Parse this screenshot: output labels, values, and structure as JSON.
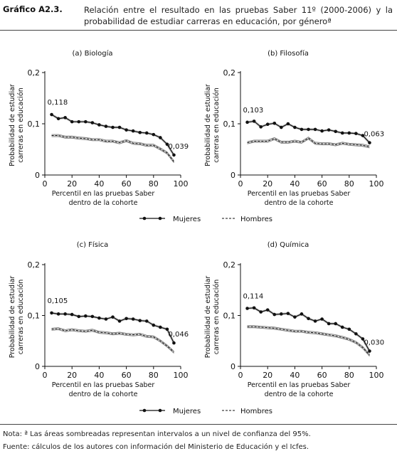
{
  "header": {
    "label": "Gráfico A2.3.",
    "title": "Relación entre el resultado en las pruebas Saber 11º (2000-2006) y la probabilidad de estudiar carreras en educación, por géneroª"
  },
  "legend": {
    "women": "Mujeres",
    "men": "Hombres"
  },
  "footer": {
    "note": "Nota: ª Las áreas sombreadas representan intervalos a un nivel de confianza del 95%.",
    "source": "Fuente: cálculos de los autores con información del Ministerio de Educación y el Icfes."
  },
  "chart_data": [
    {
      "type": "line",
      "title": "(a) Biología",
      "xlabel": "Percentil en las pruebas Saber dentro de la cohorte",
      "ylabel": "Probabilidad de estudiar carreras en educación",
      "xlim": [
        0,
        100
      ],
      "ylim": [
        0,
        0.2
      ],
      "xticks": [
        "0",
        "20",
        "40",
        "60",
        "80",
        "100"
      ],
      "yticks": [
        "0",
        "0,1",
        "0,2"
      ],
      "annotations": [
        "0,118",
        "0,039"
      ],
      "x": [
        5,
        10,
        15,
        20,
        25,
        30,
        35,
        40,
        45,
        50,
        55,
        60,
        65,
        70,
        75,
        80,
        85,
        90,
        95
      ],
      "series": [
        {
          "name": "Mujeres",
          "values": [
            0.118,
            0.11,
            0.112,
            0.104,
            0.104,
            0.104,
            0.102,
            0.098,
            0.095,
            0.093,
            0.093,
            0.088,
            0.086,
            0.083,
            0.082,
            0.079,
            0.073,
            0.06,
            0.039
          ]
        },
        {
          "name": "Hombres",
          "values": [
            0.077,
            0.077,
            0.074,
            0.074,
            0.072,
            0.071,
            0.069,
            0.069,
            0.066,
            0.066,
            0.063,
            0.067,
            0.062,
            0.061,
            0.058,
            0.058,
            0.051,
            0.043,
            0.026
          ]
        }
      ]
    },
    {
      "type": "line",
      "title": "(b) Filosofía",
      "xlabel": "Percentil en las pruebas Saber dentro de la cohorte",
      "ylabel": "Probabilidad de estudiar carreras en educación",
      "xlim": [
        0,
        100
      ],
      "ylim": [
        0,
        0.2
      ],
      "xticks": [
        "0",
        "20",
        "40",
        "60",
        "80",
        "100"
      ],
      "yticks": [
        "0",
        "0,1",
        "0,2"
      ],
      "annotations": [
        "0,103",
        "0,063"
      ],
      "x": [
        5,
        10,
        15,
        20,
        25,
        30,
        35,
        40,
        45,
        50,
        55,
        60,
        65,
        70,
        75,
        80,
        85,
        90,
        95
      ],
      "series": [
        {
          "name": "Mujeres",
          "values": [
            0.103,
            0.105,
            0.094,
            0.099,
            0.101,
            0.093,
            0.1,
            0.093,
            0.089,
            0.089,
            0.089,
            0.086,
            0.088,
            0.085,
            0.082,
            0.082,
            0.081,
            0.077,
            0.063
          ]
        },
        {
          "name": "Hombres",
          "values": [
            0.063,
            0.066,
            0.066,
            0.066,
            0.071,
            0.064,
            0.064,
            0.066,
            0.064,
            0.072,
            0.062,
            0.061,
            0.061,
            0.059,
            0.062,
            0.06,
            0.059,
            0.058,
            0.055
          ]
        }
      ]
    },
    {
      "type": "line",
      "title": "(c) Física",
      "xlabel": "Percentil en las pruebas Saber dentro de la cohorte",
      "ylabel": "Probabilidad de estudiar carreras en educación",
      "xlim": [
        0,
        100
      ],
      "ylim": [
        0,
        0.2
      ],
      "xticks": [
        "0",
        "20",
        "40",
        "60",
        "80",
        "100"
      ],
      "yticks": [
        "0",
        "0,1",
        "0,2"
      ],
      "annotations": [
        "0,105",
        "0,046"
      ],
      "x": [
        5,
        10,
        15,
        20,
        25,
        30,
        35,
        40,
        45,
        50,
        55,
        60,
        65,
        70,
        75,
        80,
        85,
        90,
        95
      ],
      "series": [
        {
          "name": "Mujeres",
          "values": [
            0.105,
            0.103,
            0.103,
            0.102,
            0.098,
            0.099,
            0.098,
            0.095,
            0.093,
            0.097,
            0.089,
            0.094,
            0.093,
            0.09,
            0.089,
            0.081,
            0.077,
            0.073,
            0.046
          ]
        },
        {
          "name": "Hombres",
          "values": [
            0.073,
            0.074,
            0.07,
            0.072,
            0.07,
            0.069,
            0.071,
            0.067,
            0.066,
            0.064,
            0.065,
            0.063,
            0.062,
            0.063,
            0.059,
            0.058,
            0.05,
            0.04,
            0.028
          ]
        }
      ]
    },
    {
      "type": "line",
      "title": "(d) Química",
      "xlabel": "Percentil en las pruebas Saber dentro de la cohorte",
      "ylabel": "Probabilidad de estudiar carreras en educación",
      "xlim": [
        0,
        100
      ],
      "ylim": [
        0,
        0.2
      ],
      "xticks": [
        "0",
        "20",
        "40",
        "60",
        "80",
        "100"
      ],
      "yticks": [
        "0",
        "0,1",
        "0,2"
      ],
      "annotations": [
        "0,114",
        "0,030"
      ],
      "x": [
        5,
        10,
        15,
        20,
        25,
        30,
        35,
        40,
        45,
        50,
        55,
        60,
        65,
        70,
        75,
        80,
        85,
        90,
        95
      ],
      "series": [
        {
          "name": "Mujeres",
          "values": [
            0.114,
            0.115,
            0.107,
            0.111,
            0.102,
            0.103,
            0.104,
            0.097,
            0.103,
            0.094,
            0.089,
            0.093,
            0.084,
            0.084,
            0.077,
            0.073,
            0.064,
            0.054,
            0.03
          ]
        },
        {
          "name": "Hombres",
          "values": [
            0.078,
            0.078,
            0.077,
            0.076,
            0.075,
            0.073,
            0.071,
            0.069,
            0.069,
            0.067,
            0.066,
            0.064,
            0.062,
            0.06,
            0.057,
            0.053,
            0.047,
            0.037,
            0.022
          ]
        }
      ]
    }
  ]
}
